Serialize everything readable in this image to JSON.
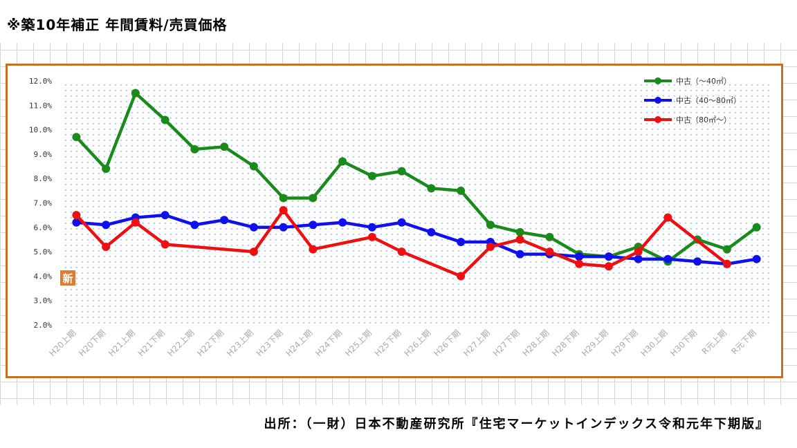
{
  "page": {
    "title": "※築10年補正 年間賃料/売買価格",
    "source": "出所：（一財）日本不動産研究所『住宅マーケットインデックス令和元年下期版』",
    "badge": "新"
  },
  "colors": {
    "frame": "#c8701e",
    "green": "#1a8a1a",
    "blue": "#1010ee",
    "red": "#ee1010",
    "badge": "#e07a30"
  },
  "chart_data": {
    "type": "line",
    "title": "",
    "xlabel": "",
    "ylabel": "",
    "ylim": [
      2.0,
      12.0
    ],
    "y_ticks": [
      "2.0%",
      "3.0%",
      "4.0%",
      "5.0%",
      "6.0%",
      "7.0%",
      "8.0%",
      "9.0%",
      "10.0%",
      "11.0%",
      "12.0%"
    ],
    "grid": "dotted",
    "legend_position": "top-right",
    "categories": [
      "H20上期",
      "H20下期",
      "H21上期",
      "H21下期",
      "H22上期",
      "H22下期",
      "H23上期",
      "H23下期",
      "H24上期",
      "H24下期",
      "H25上期",
      "H25下期",
      "H26上期",
      "H26下期",
      "H27上期",
      "H27下期",
      "H28上期",
      "H28下期",
      "H29上期",
      "H29下期",
      "H30上期",
      "H30下期",
      "R元上期",
      "R元下期"
    ],
    "series": [
      {
        "name": "中古（～40㎡）",
        "color": "#1a8a1a",
        "values": [
          9.7,
          8.4,
          11.5,
          10.4,
          9.2,
          9.3,
          8.5,
          7.2,
          7.2,
          8.7,
          8.1,
          8.3,
          7.6,
          7.5,
          6.1,
          5.8,
          5.6,
          4.9,
          4.8,
          5.2,
          4.6,
          5.5,
          5.1,
          6.0
        ]
      },
      {
        "name": "中古（40～80㎡）",
        "color": "#1010ee",
        "values": [
          6.2,
          6.1,
          6.4,
          6.5,
          6.1,
          6.3,
          6.0,
          6.0,
          6.1,
          6.2,
          6.0,
          6.2,
          5.8,
          5.4,
          5.4,
          4.9,
          4.9,
          4.8,
          4.8,
          4.7,
          4.7,
          4.6,
          4.5,
          4.7
        ]
      },
      {
        "name": "中古（80㎡～）",
        "color": "#ee1010",
        "values": [
          6.5,
          5.2,
          6.2,
          5.3,
          null,
          null,
          5.0,
          6.7,
          5.1,
          null,
          5.6,
          5.0,
          null,
          4.0,
          5.2,
          5.5,
          5.0,
          4.5,
          4.4,
          5.0,
          6.4,
          null,
          4.5,
          null
        ]
      }
    ]
  }
}
